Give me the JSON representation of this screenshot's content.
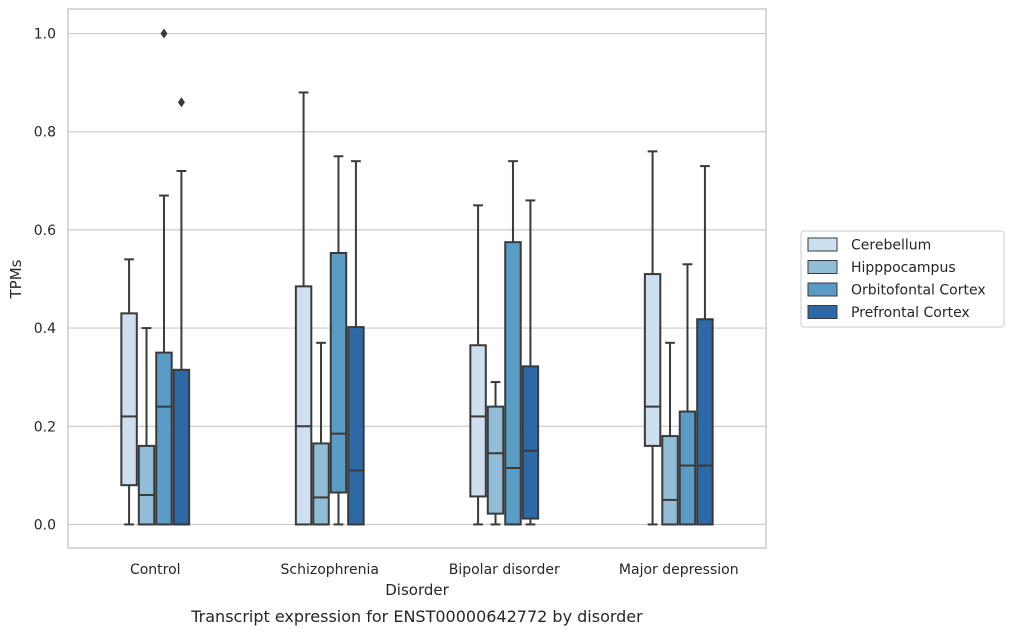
{
  "chart_data": {
    "type": "box",
    "title": "",
    "caption": "Transcript expression for ENST00000642772 by disorder",
    "xlabel": "Disorder",
    "ylabel": "TPMs",
    "ylim": [
      -0.048,
      1.05
    ],
    "yticks": [
      "0.0",
      "0.2",
      "0.4",
      "0.6",
      "0.8",
      "1.0"
    ],
    "grid": true,
    "legend_position": "right",
    "categories": [
      "Control",
      "Schizophrenia",
      "Bipolar disorder",
      "Major depression"
    ],
    "series": [
      {
        "name": "Cerebellum",
        "color": "#cedff0",
        "boxes": [
          {
            "min": 0.0,
            "q1": 0.08,
            "median": 0.22,
            "q3": 0.43,
            "max": 0.54,
            "outliers": []
          },
          {
            "min": 0.0,
            "q1": 0.0,
            "median": 0.2,
            "q3": 0.485,
            "max": 0.88,
            "outliers": []
          },
          {
            "min": 0.0,
            "q1": 0.057,
            "median": 0.22,
            "q3": 0.365,
            "max": 0.65,
            "outliers": []
          },
          {
            "min": 0.0,
            "q1": 0.16,
            "median": 0.24,
            "q3": 0.51,
            "max": 0.76,
            "outliers": []
          }
        ]
      },
      {
        "name": "Hipppocampus",
        "color": "#91bdd8",
        "boxes": [
          {
            "min": 0.0,
            "q1": 0.0,
            "median": 0.06,
            "q3": 0.16,
            "max": 0.4,
            "outliers": []
          },
          {
            "min": 0.0,
            "q1": 0.0,
            "median": 0.055,
            "q3": 0.165,
            "max": 0.37,
            "outliers": []
          },
          {
            "min": 0.0,
            "q1": 0.022,
            "median": 0.145,
            "q3": 0.24,
            "max": 0.29,
            "outliers": []
          },
          {
            "min": 0.0,
            "q1": 0.0,
            "median": 0.05,
            "q3": 0.18,
            "max": 0.37,
            "outliers": []
          }
        ]
      },
      {
        "name": "Orbitofontal Cortex",
        "color": "#5a9cc6",
        "boxes": [
          {
            "min": 0.0,
            "q1": 0.0,
            "median": 0.24,
            "q3": 0.35,
            "max": 0.67,
            "outliers": [
              1.0
            ]
          },
          {
            "min": 0.0,
            "q1": 0.065,
            "median": 0.185,
            "q3": 0.553,
            "max": 0.75,
            "outliers": []
          },
          {
            "min": 0.0,
            "q1": 0.0,
            "median": 0.115,
            "q3": 0.575,
            "max": 0.74,
            "outliers": []
          },
          {
            "min": 0.0,
            "q1": 0.0,
            "median": 0.12,
            "q3": 0.23,
            "max": 0.53,
            "outliers": []
          }
        ]
      },
      {
        "name": "Prefrontal Cortex",
        "color": "#2d69a6",
        "boxes": [
          {
            "min": 0.0,
            "q1": 0.0,
            "median": 0.0,
            "q3": 0.315,
            "max": 0.72,
            "outliers": [
              0.86
            ]
          },
          {
            "min": 0.0,
            "q1": 0.0,
            "median": 0.11,
            "q3": 0.402,
            "max": 0.74,
            "outliers": []
          },
          {
            "min": 0.0,
            "q1": 0.012,
            "median": 0.15,
            "q3": 0.322,
            "max": 0.66,
            "outliers": []
          },
          {
            "min": 0.0,
            "q1": 0.0,
            "median": 0.12,
            "q3": 0.418,
            "max": 0.73,
            "outliers": []
          }
        ]
      }
    ]
  }
}
